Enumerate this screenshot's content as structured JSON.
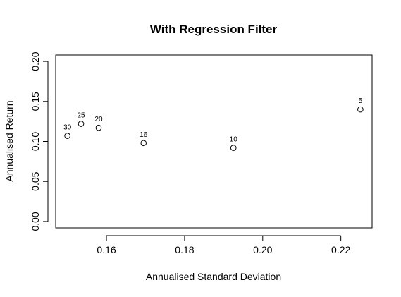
{
  "chart_data": {
    "type": "scatter",
    "title": "With Regression Filter",
    "xlabel": "Annualised Standard Deviation",
    "ylabel": "Annualised Return",
    "xlim": [
      0.147,
      0.228
    ],
    "ylim": [
      -0.008,
      0.208
    ],
    "xticks": [
      0.16,
      0.18,
      0.2,
      0.22
    ],
    "xtick_labels": [
      "0.16",
      "0.18",
      "0.20",
      "0.22"
    ],
    "yticks": [
      0.0,
      0.05,
      0.1,
      0.15,
      0.2
    ],
    "ytick_labels": [
      "0.00",
      "0.05",
      "0.10",
      "0.15",
      "0.20"
    ],
    "grid": false,
    "marker": "open-circle",
    "points": [
      {
        "label": "30",
        "x": 0.15,
        "y": 0.107
      },
      {
        "label": "25",
        "x": 0.1535,
        "y": 0.122
      },
      {
        "label": "20",
        "x": 0.158,
        "y": 0.117
      },
      {
        "label": "16",
        "x": 0.1695,
        "y": 0.098
      },
      {
        "label": "10",
        "x": 0.1925,
        "y": 0.092
      },
      {
        "label": "5",
        "x": 0.225,
        "y": 0.14
      }
    ]
  }
}
